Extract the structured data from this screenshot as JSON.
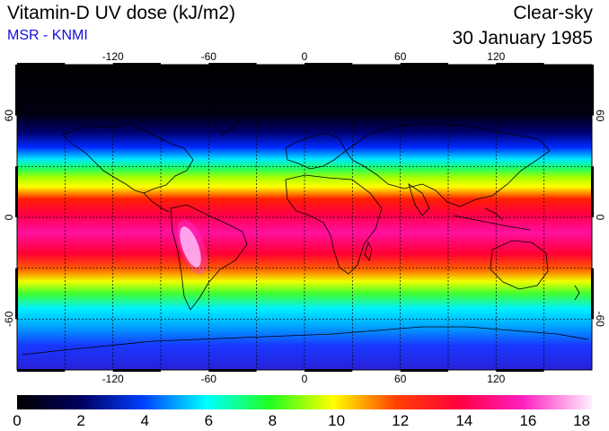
{
  "header": {
    "title": "Vitamin-D UV dose (kJ/m2)",
    "source": "MSR - KNMI",
    "condition": "Clear-sky",
    "date": "30 January 1985"
  },
  "map": {
    "lon_ticks": [
      "-120",
      "-60",
      "0",
      "60",
      "120"
    ],
    "lat_ticks": [
      "60",
      "0",
      "-60"
    ]
  },
  "colorbar": {
    "labels": [
      "0",
      "2",
      "4",
      "6",
      "8",
      "10",
      "12",
      "14",
      "16",
      "18"
    ],
    "min": 0,
    "max": 18
  }
}
